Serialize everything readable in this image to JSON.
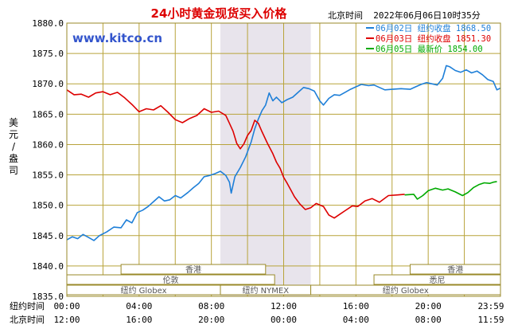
{
  "chart_data": {
    "type": "line",
    "title": "24小时黄金现货买入价格",
    "timestamp": "北京时间  2022年06月06日10时35分",
    "watermark": "www.kitco.cn",
    "ylabel": "美元/盎司",
    "ylim": [
      1835,
      1880
    ],
    "yticks": [
      "1880.0",
      "1875.0",
      "1870.0",
      "1865.0",
      "1860.0",
      "1855.0",
      "1850.0",
      "1845.0",
      "1840.0",
      "1835.0"
    ],
    "xlim": [
      0,
      24
    ],
    "xaxis_rows": [
      {
        "label": "纽约时间",
        "ticks": [
          "00:00",
          "04:00",
          "08:00",
          "12:00",
          "16:00",
          "20:00",
          "23:59"
        ]
      },
      {
        "label": "北京时间",
        "ticks": [
          "12:00",
          "16:00",
          "20:00",
          "00:00",
          "04:00",
          "08:00",
          "11:59"
        ]
      }
    ],
    "grid": true,
    "legend": [
      {
        "date": "06月02日",
        "label": "纽约收盘",
        "value": "1868.50",
        "color": "#1e7fd8"
      },
      {
        "date": "06月03日",
        "label": "纽约收盘",
        "value": "1851.30",
        "color": "#dd0000"
      },
      {
        "date": "06月05日",
        "label": "最新价",
        "value": "1854.00",
        "color": "#00aa00"
      }
    ],
    "shaded_region": [
      8.5,
      13.5
    ],
    "markets": [
      {
        "name": "香港",
        "start": 3.0,
        "end": 11.0,
        "row": 0
      },
      {
        "name": "香港",
        "start": 19.0,
        "end": 24.0,
        "row": 0
      },
      {
        "name": "伦敦",
        "start": 0.0,
        "end": 11.5,
        "row": 1
      },
      {
        "name": "悉尼",
        "start": 17.0,
        "end": 24.0,
        "row": 1
      },
      {
        "name": "纽约 Globex",
        "start": 0.0,
        "end": 8.5,
        "row": 2
      },
      {
        "name": "纽约 NYMEX",
        "start": 8.5,
        "end": 13.5,
        "row": 2
      },
      {
        "name": "纽约 Globex",
        "start": 13.5,
        "end": 24.0,
        "row": 2
      }
    ],
    "series": [
      {
        "name": "06月02日",
        "color": "#1e7fd8",
        "points": [
          [
            0,
            1844.3
          ],
          [
            0.3,
            1844.8
          ],
          [
            0.6,
            1844.5
          ],
          [
            0.9,
            1845.2
          ],
          [
            1.2,
            1844.7
          ],
          [
            1.5,
            1844.2
          ],
          [
            1.8,
            1845.0
          ],
          [
            2.2,
            1845.6
          ],
          [
            2.6,
            1846.4
          ],
          [
            3.0,
            1846.3
          ],
          [
            3.3,
            1847.6
          ],
          [
            3.6,
            1847.1
          ],
          [
            3.9,
            1848.8
          ],
          [
            4.2,
            1849.2
          ],
          [
            4.5,
            1849.8
          ],
          [
            4.8,
            1850.6
          ],
          [
            5.1,
            1851.4
          ],
          [
            5.4,
            1850.7
          ],
          [
            5.7,
            1850.9
          ],
          [
            6.0,
            1851.6
          ],
          [
            6.3,
            1851.2
          ],
          [
            6.7,
            1852.1
          ],
          [
            7.0,
            1852.9
          ],
          [
            7.3,
            1853.6
          ],
          [
            7.6,
            1854.7
          ],
          [
            7.9,
            1854.9
          ],
          [
            8.2,
            1855.2
          ],
          [
            8.5,
            1855.6
          ],
          [
            8.8,
            1854.9
          ],
          [
            9.0,
            1853.8
          ],
          [
            9.1,
            1852.0
          ],
          [
            9.3,
            1854.7
          ],
          [
            9.6,
            1856.2
          ],
          [
            9.9,
            1858.0
          ],
          [
            10.2,
            1860.4
          ],
          [
            10.4,
            1862.6
          ],
          [
            10.6,
            1864.2
          ],
          [
            10.8,
            1865.6
          ],
          [
            11.0,
            1866.5
          ],
          [
            11.2,
            1868.5
          ],
          [
            11.4,
            1867.2
          ],
          [
            11.6,
            1867.8
          ],
          [
            11.9,
            1866.9
          ],
          [
            12.2,
            1867.4
          ],
          [
            12.5,
            1867.8
          ],
          [
            12.8,
            1868.6
          ],
          [
            13.1,
            1869.4
          ],
          [
            13.4,
            1869.2
          ],
          [
            13.7,
            1868.8
          ],
          [
            14.0,
            1867.2
          ],
          [
            14.2,
            1866.5
          ],
          [
            14.5,
            1867.6
          ],
          [
            14.8,
            1868.2
          ],
          [
            15.1,
            1868.1
          ],
          [
            15.4,
            1868.6
          ],
          [
            15.7,
            1869.1
          ],
          [
            16.0,
            1869.5
          ],
          [
            16.3,
            1869.9
          ],
          [
            16.7,
            1869.7
          ],
          [
            17.0,
            1869.8
          ],
          [
            17.3,
            1869.4
          ],
          [
            17.6,
            1869.0
          ],
          [
            18.0,
            1869.1
          ],
          [
            18.5,
            1869.2
          ],
          [
            19.0,
            1869.1
          ],
          [
            19.3,
            1869.5
          ],
          [
            19.6,
            1869.9
          ],
          [
            19.9,
            1870.2
          ],
          [
            20.2,
            1870.0
          ],
          [
            20.5,
            1869.8
          ],
          [
            20.8,
            1870.9
          ],
          [
            21.0,
            1873.0
          ],
          [
            21.2,
            1872.8
          ],
          [
            21.5,
            1872.2
          ],
          [
            21.8,
            1871.9
          ],
          [
            22.1,
            1872.3
          ],
          [
            22.4,
            1871.8
          ],
          [
            22.7,
            1872.1
          ],
          [
            23.0,
            1871.5
          ],
          [
            23.3,
            1870.7
          ],
          [
            23.6,
            1870.4
          ],
          [
            23.8,
            1869.0
          ],
          [
            24.0,
            1869.3
          ]
        ]
      },
      {
        "name": "06月03日",
        "color": "#dd0000",
        "points": [
          [
            0,
            1869.0
          ],
          [
            0.4,
            1868.2
          ],
          [
            0.8,
            1868.3
          ],
          [
            1.2,
            1867.8
          ],
          [
            1.6,
            1868.5
          ],
          [
            2.0,
            1868.7
          ],
          [
            2.4,
            1868.2
          ],
          [
            2.8,
            1868.6
          ],
          [
            3.2,
            1867.7
          ],
          [
            3.6,
            1866.6
          ],
          [
            4.0,
            1865.4
          ],
          [
            4.4,
            1865.9
          ],
          [
            4.8,
            1865.7
          ],
          [
            5.2,
            1866.4
          ],
          [
            5.6,
            1865.3
          ],
          [
            6.0,
            1864.1
          ],
          [
            6.4,
            1863.6
          ],
          [
            6.8,
            1864.3
          ],
          [
            7.2,
            1864.8
          ],
          [
            7.6,
            1865.9
          ],
          [
            8.0,
            1865.3
          ],
          [
            8.4,
            1865.5
          ],
          [
            8.8,
            1864.8
          ],
          [
            9.0,
            1863.5
          ],
          [
            9.2,
            1862.2
          ],
          [
            9.4,
            1860.2
          ],
          [
            9.6,
            1859.3
          ],
          [
            9.8,
            1860.1
          ],
          [
            10.0,
            1861.5
          ],
          [
            10.2,
            1862.3
          ],
          [
            10.4,
            1864.0
          ],
          [
            10.6,
            1863.5
          ],
          [
            10.8,
            1862.1
          ],
          [
            11.1,
            1860.2
          ],
          [
            11.4,
            1858.5
          ],
          [
            11.6,
            1857.1
          ],
          [
            11.8,
            1856.1
          ],
          [
            12.0,
            1854.6
          ],
          [
            12.2,
            1853.6
          ],
          [
            12.4,
            1852.5
          ],
          [
            12.6,
            1851.4
          ],
          [
            12.9,
            1850.2
          ],
          [
            13.2,
            1849.3
          ],
          [
            13.5,
            1849.6
          ],
          [
            13.8,
            1850.3
          ],
          [
            14.2,
            1849.8
          ],
          [
            14.5,
            1848.4
          ],
          [
            14.8,
            1847.9
          ],
          [
            15.1,
            1848.5
          ],
          [
            15.4,
            1849.1
          ],
          [
            15.8,
            1849.9
          ],
          [
            16.1,
            1849.8
          ],
          [
            16.5,
            1850.7
          ],
          [
            16.9,
            1851.1
          ],
          [
            17.3,
            1850.5
          ],
          [
            17.8,
            1851.6
          ],
          [
            18.3,
            1851.7
          ],
          [
            18.7,
            1851.8
          ]
        ]
      },
      {
        "name": "06月05日",
        "color": "#00aa00",
        "points": [
          [
            18.7,
            1851.7
          ],
          [
            19.2,
            1851.8
          ],
          [
            19.4,
            1851.0
          ],
          [
            19.7,
            1851.6
          ],
          [
            20.0,
            1852.4
          ],
          [
            20.4,
            1852.8
          ],
          [
            20.8,
            1852.5
          ],
          [
            21.1,
            1852.7
          ],
          [
            21.5,
            1852.2
          ],
          [
            21.9,
            1851.6
          ],
          [
            22.2,
            1852.1
          ],
          [
            22.5,
            1852.9
          ],
          [
            22.8,
            1853.4
          ],
          [
            23.1,
            1853.7
          ],
          [
            23.4,
            1853.6
          ],
          [
            23.6,
            1853.8
          ],
          [
            23.8,
            1853.9
          ]
        ]
      }
    ]
  }
}
